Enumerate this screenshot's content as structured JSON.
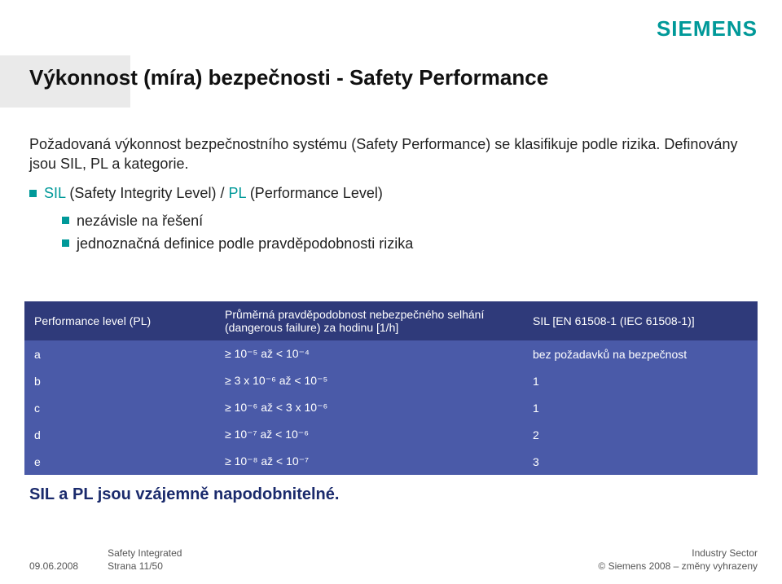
{
  "brand": {
    "name": "SIEMENS",
    "color": "#009999"
  },
  "title": "Výkonnost (míra) bezpečnosti - Safety Performance",
  "lead": "Požadovaná výkonnost bezpečnostního systému (Safety Performance) se klasifikuje podle rizika. Definovány jsou SIL, PL a kategorie.",
  "bullet_main_prefix": "SIL",
  "bullet_main_mid": " (Safety Integrity Level) / ",
  "bullet_main_pl": "PL",
  "bullet_main_suffix": " (Performance Level)",
  "sub1": "nezávisle na řešení",
  "sub2": "jednoznačná definice podle pravděpodobnosti rizika",
  "table": {
    "header_bg": "#2f3a7a",
    "row_bg": "#4a5aa8",
    "text_color": "#ffffff",
    "columns": [
      "Performance level (PL)",
      "Průměrná pravděpodobnost nebezpečného selhání (dangerous failure) za hodinu [1/h]",
      "SIL [EN 61508-1 (IEC 61508-1)]"
    ],
    "rows": [
      {
        "pl": "a",
        "range": "≥ 10⁻⁵ až < 10⁻⁴",
        "sil": "bez požadavků na bezpečnost"
      },
      {
        "pl": "b",
        "range": "≥ 3 x 10⁻⁶ až < 10⁻⁵",
        "sil": "1"
      },
      {
        "pl": "c",
        "range": "≥ 10⁻⁶ až < 3 x 10⁻⁶",
        "sil": "1"
      },
      {
        "pl": "d",
        "range": "≥ 10⁻⁷ až < 10⁻⁶",
        "sil": "2"
      },
      {
        "pl": "e",
        "range": "≥ 10⁻⁸ až < 10⁻⁷",
        "sil": "3"
      }
    ]
  },
  "conclusion": "SIL a PL jsou vzájemně napodobnitelné.",
  "footer": {
    "date": "09.06.2008",
    "title": "Safety Integrated",
    "page": "Strana 11/50",
    "sector": "Industry Sector",
    "copyright": "© Siemens 2008 – změny vyhrazeny"
  },
  "colors": {
    "accent": "#009999",
    "concl": "#1a2a6c",
    "band": "#eaeaea"
  }
}
